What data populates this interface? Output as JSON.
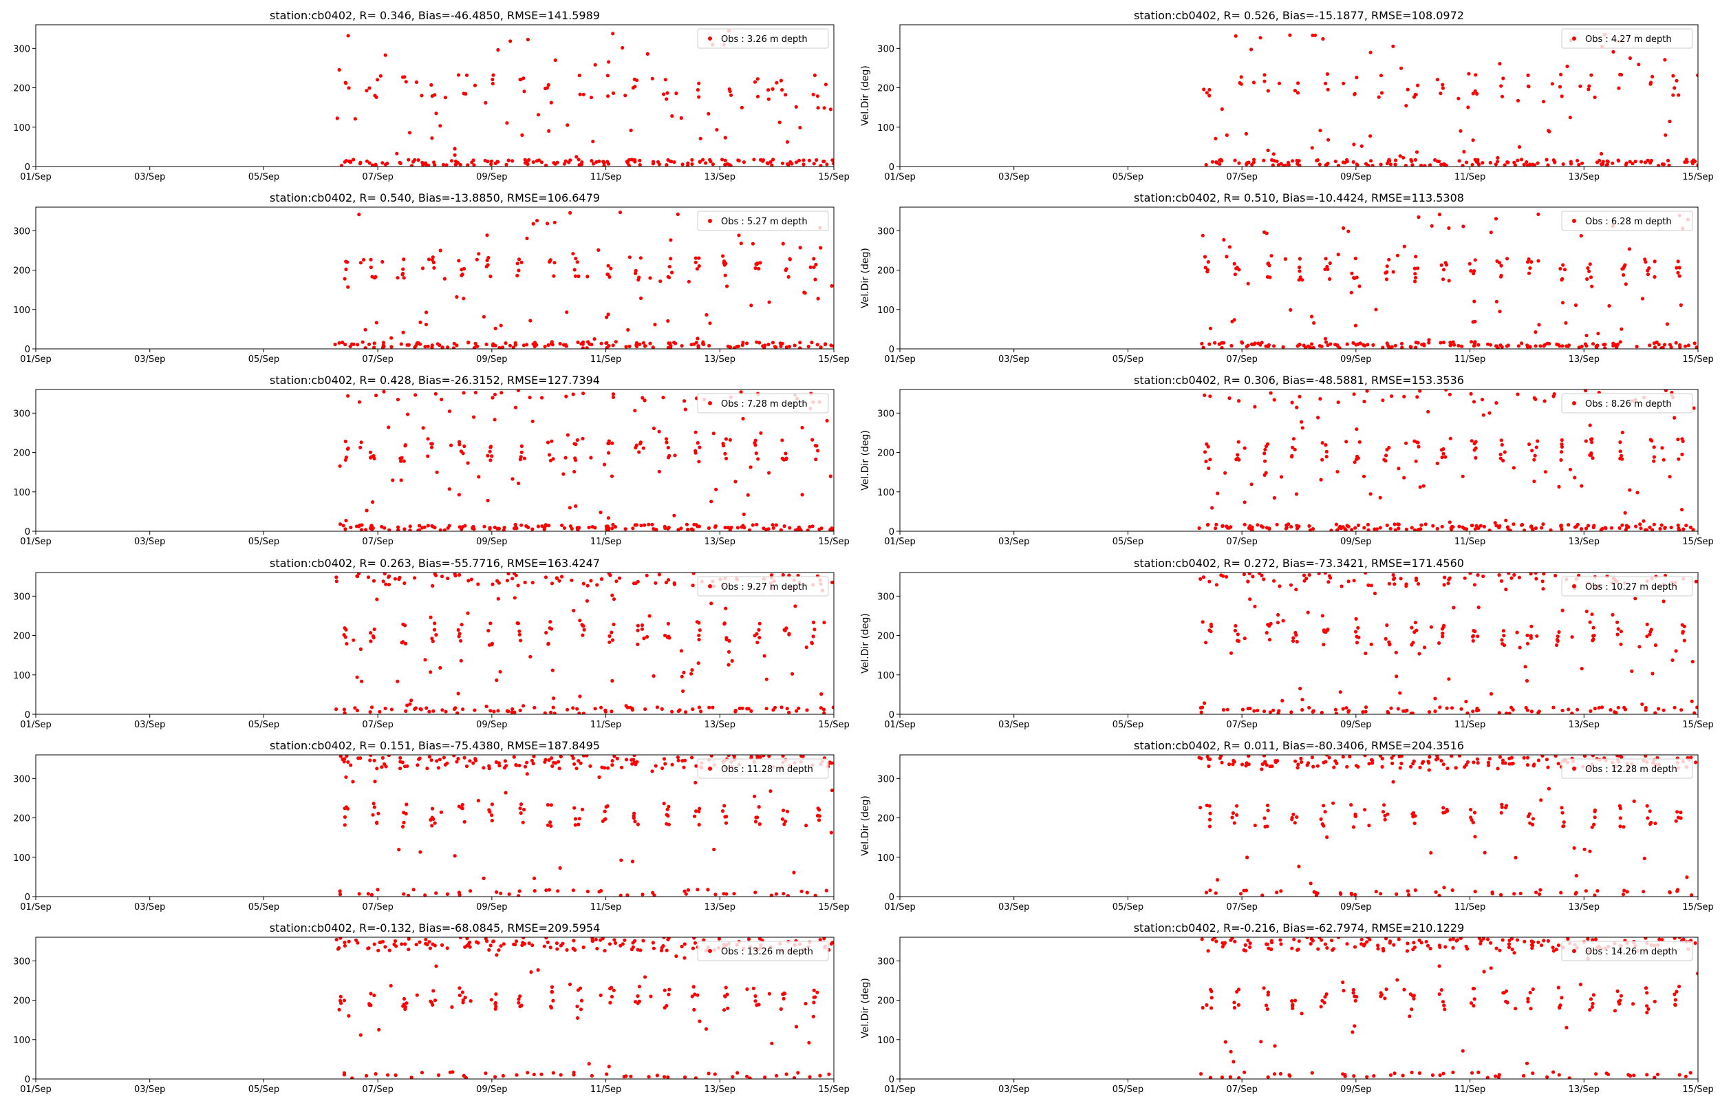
{
  "figure": {
    "x_tick_labels": [
      "01/Sep",
      "03/Sep",
      "05/Sep",
      "07/Sep",
      "09/Sep",
      "11/Sep",
      "13/Sep",
      "15/Sep"
    ],
    "y_tick_labels": [
      "0",
      "100",
      "200",
      "300"
    ],
    "ylabel": "Vel.Dir (deg)",
    "marker_color": "#ff0000"
  },
  "chart_data": [
    {
      "type": "scatter",
      "title": "station:cb0402, R= 0.346, Bias=-46.4850, RMSE=141.5989",
      "legend": "Obs : 3.26 m depth",
      "depth_m": 3.26,
      "xlabel": "",
      "ylabel": "",
      "xlim": [
        0,
        14
      ],
      "ylim": [
        0,
        360
      ],
      "obs_start_day": 5.2,
      "pattern": {
        "upper_cluster": "none",
        "mid_cluster": "sparse",
        "low_band": "dense",
        "noise": "med"
      }
    },
    {
      "type": "scatter",
      "title": "station:cb0402, R= 0.526, Bias=-15.1877, RMSE=108.0972",
      "legend": "Obs : 4.27 m depth",
      "depth_m": 4.27,
      "xlabel": "",
      "ylabel": "Vel.Dir (deg)",
      "xlim": [
        0,
        14
      ],
      "ylim": [
        0,
        360
      ],
      "obs_start_day": 5.2,
      "pattern": {
        "upper_cluster": "none",
        "mid_cluster": "sparse",
        "low_band": "dense",
        "noise": "med"
      }
    },
    {
      "type": "scatter",
      "title": "station:cb0402, R= 0.540, Bias=-13.8850, RMSE=106.6479",
      "legend": "Obs : 5.27 m depth",
      "depth_m": 5.27,
      "xlabel": "",
      "ylabel": "",
      "xlim": [
        0,
        14
      ],
      "ylim": [
        0,
        360
      ],
      "obs_start_day": 5.2,
      "pattern": {
        "upper_cluster": "none",
        "mid_cluster": "medium",
        "low_band": "dense",
        "noise": "med"
      }
    },
    {
      "type": "scatter",
      "title": "station:cb0402, R= 0.510, Bias=-10.4424, RMSE=113.5308",
      "legend": "Obs : 6.28 m depth",
      "depth_m": 6.28,
      "xlabel": "",
      "ylabel": "Vel.Dir (deg)",
      "xlim": [
        0,
        14
      ],
      "ylim": [
        0,
        360
      ],
      "obs_start_day": 5.2,
      "pattern": {
        "upper_cluster": "none",
        "mid_cluster": "medium",
        "low_band": "dense",
        "noise": "med"
      }
    },
    {
      "type": "scatter",
      "title": "station:cb0402, R= 0.428, Bias=-26.3152, RMSE=127.7394",
      "legend": "Obs : 7.28 m depth",
      "depth_m": 7.28,
      "xlabel": "",
      "ylabel": "",
      "xlim": [
        0,
        14
      ],
      "ylim": [
        0,
        360
      ],
      "obs_start_day": 5.2,
      "pattern": {
        "upper_cluster": "light",
        "mid_cluster": "medium",
        "low_band": "dense",
        "noise": "med"
      }
    },
    {
      "type": "scatter",
      "title": "station:cb0402, R= 0.306, Bias=-48.5881, RMSE=153.3536",
      "legend": "Obs : 8.26 m depth",
      "depth_m": 8.26,
      "xlabel": "",
      "ylabel": "Vel.Dir (deg)",
      "xlim": [
        0,
        14
      ],
      "ylim": [
        0,
        360
      ],
      "obs_start_day": 5.2,
      "pattern": {
        "upper_cluster": "light",
        "mid_cluster": "medium",
        "low_band": "dense",
        "noise": "med"
      }
    },
    {
      "type": "scatter",
      "title": "station:cb0402, R= 0.263, Bias=-55.7716, RMSE=163.4247",
      "legend": "Obs : 9.27 m depth",
      "depth_m": 9.27,
      "xlabel": "",
      "ylabel": "",
      "xlim": [
        0,
        14
      ],
      "ylim": [
        0,
        360
      ],
      "obs_start_day": 5.2,
      "pattern": {
        "upper_cluster": "medium",
        "mid_cluster": "medium",
        "low_band": "medium",
        "noise": "med"
      }
    },
    {
      "type": "scatter",
      "title": "station:cb0402, R= 0.272, Bias=-73.3421, RMSE=171.4560",
      "legend": "Obs : 10.27 m depth",
      "depth_m": 10.27,
      "xlabel": "",
      "ylabel": "Vel.Dir (deg)",
      "xlim": [
        0,
        14
      ],
      "ylim": [
        0,
        360
      ],
      "obs_start_day": 5.2,
      "pattern": {
        "upper_cluster": "medium",
        "mid_cluster": "medium",
        "low_band": "medium",
        "noise": "med"
      }
    },
    {
      "type": "scatter",
      "title": "station:cb0402, R= 0.151, Bias=-75.4380, RMSE=187.8495",
      "legend": "Obs : 11.28 m depth",
      "depth_m": 11.28,
      "xlabel": "",
      "ylabel": "",
      "xlim": [
        0,
        14
      ],
      "ylim": [
        0,
        360
      ],
      "obs_start_day": 5.2,
      "pattern": {
        "upper_cluster": "dense",
        "mid_cluster": "medium",
        "low_band": "sparse",
        "noise": "low"
      }
    },
    {
      "type": "scatter",
      "title": "station:cb0402, R= 0.011, Bias=-80.3406, RMSE=204.3516",
      "legend": "Obs : 12.28 m depth",
      "depth_m": 12.28,
      "xlabel": "",
      "ylabel": "Vel.Dir (deg)",
      "xlim": [
        0,
        14
      ],
      "ylim": [
        0,
        360
      ],
      "obs_start_day": 5.2,
      "pattern": {
        "upper_cluster": "dense",
        "mid_cluster": "medium",
        "low_band": "sparse",
        "noise": "low"
      }
    },
    {
      "type": "scatter",
      "title": "station:cb0402, R=-0.132, Bias=-68.0845, RMSE=209.5954",
      "legend": "Obs : 13.26 m depth",
      "depth_m": 13.26,
      "xlabel": "",
      "ylabel": "",
      "xlim": [
        0,
        14
      ],
      "ylim": [
        0,
        360
      ],
      "obs_start_day": 5.2,
      "pattern": {
        "upper_cluster": "dense",
        "mid_cluster": "medium",
        "low_band": "sparse",
        "noise": "low"
      }
    },
    {
      "type": "scatter",
      "title": "station:cb0402, R=-0.216, Bias=-62.7974, RMSE=210.1229",
      "legend": "Obs : 14.26 m depth",
      "depth_m": 14.26,
      "xlabel": "",
      "ylabel": "Vel.Dir (deg)",
      "xlim": [
        0,
        14
      ],
      "ylim": [
        0,
        360
      ],
      "obs_start_day": 5.2,
      "pattern": {
        "upper_cluster": "dense",
        "mid_cluster": "medium",
        "low_band": "sparse",
        "noise": "low"
      }
    }
  ]
}
